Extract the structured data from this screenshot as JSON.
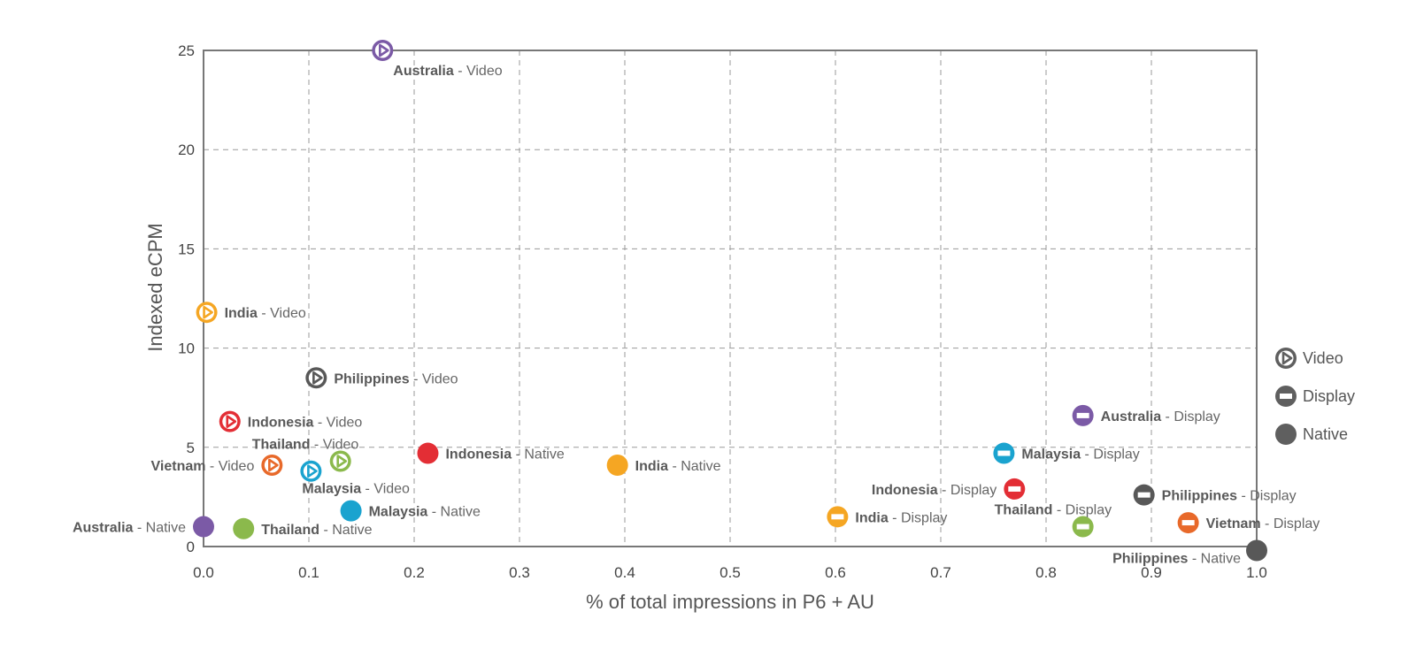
{
  "chart_data": {
    "type": "scatter",
    "title": "",
    "xlabel": "% of total impressions in P6 + AU",
    "ylabel": "Indexed eCPM",
    "xlim": [
      0,
      1.0
    ],
    "ylim": [
      0,
      25
    ],
    "x_ticks": [
      "0.0",
      "0.1",
      "0.2",
      "0.3",
      "0.4",
      "0.5",
      "0.6",
      "0.7",
      "0.8",
      "0.9",
      "1.0"
    ],
    "y_ticks": [
      "0",
      "5",
      "10",
      "15",
      "20",
      "25"
    ],
    "grid": "dashed",
    "legend_position": "right",
    "legend": [
      {
        "label": "Video",
        "marker": "video"
      },
      {
        "label": "Display",
        "marker": "display"
      },
      {
        "label": "Native",
        "marker": "native"
      }
    ],
    "marker_types": {
      "video": "circle-play-icon",
      "display": "circle-minus-icon",
      "native": "filled-circle-icon"
    },
    "countries": {
      "Australia": "#7b5aa6",
      "India": "#f5a623",
      "Philippines": "#585858",
      "Indonesia": "#e32e35",
      "Vietnam": "#e8692a",
      "Thailand": "#8bb94c",
      "Malaysia": "#1aa3cf"
    },
    "legend_color": "#5f5f5f",
    "points": [
      {
        "country": "Australia",
        "format": "Video",
        "type": "video",
        "x": 0.17,
        "y": 25.0,
        "label_pos": "below-right"
      },
      {
        "country": "India",
        "format": "Video",
        "type": "video",
        "x": 0.003,
        "y": 11.8,
        "label_pos": "right"
      },
      {
        "country": "Philippines",
        "format": "Video",
        "type": "video",
        "x": 0.107,
        "y": 8.5,
        "label_pos": "right"
      },
      {
        "country": "Indonesia",
        "format": "Video",
        "type": "video",
        "x": 0.025,
        "y": 6.3,
        "label_pos": "right"
      },
      {
        "country": "Thailand",
        "format": "Video",
        "type": "video",
        "x": 0.13,
        "y": 4.3,
        "label_pos": "above-left"
      },
      {
        "country": "Vietnam",
        "format": "Video",
        "type": "video",
        "x": 0.065,
        "y": 4.1,
        "label_pos": "left"
      },
      {
        "country": "Malaysia",
        "format": "Video",
        "type": "video",
        "x": 0.102,
        "y": 3.8,
        "label_pos": "below"
      },
      {
        "country": "Australia",
        "format": "Native",
        "type": "native",
        "x": 0.0,
        "y": 1.0,
        "label_pos": "left"
      },
      {
        "country": "Thailand",
        "format": "Native",
        "type": "native",
        "x": 0.038,
        "y": 0.9,
        "label_pos": "right"
      },
      {
        "country": "Malaysia",
        "format": "Native",
        "type": "native",
        "x": 0.14,
        "y": 1.8,
        "label_pos": "right"
      },
      {
        "country": "Indonesia",
        "format": "Native",
        "type": "native",
        "x": 0.213,
        "y": 4.7,
        "label_pos": "right"
      },
      {
        "country": "India",
        "format": "Native",
        "type": "native",
        "x": 0.393,
        "y": 4.1,
        "label_pos": "right"
      },
      {
        "country": "Philippines",
        "format": "Native",
        "type": "native",
        "x": 1.0,
        "y": -0.2,
        "label_pos": "left-below"
      },
      {
        "country": "Australia",
        "format": "Display",
        "type": "display",
        "x": 0.835,
        "y": 6.6,
        "label_pos": "right"
      },
      {
        "country": "Malaysia",
        "format": "Display",
        "type": "display",
        "x": 0.76,
        "y": 4.7,
        "label_pos": "right"
      },
      {
        "country": "Indonesia",
        "format": "Display",
        "type": "display",
        "x": 0.77,
        "y": 2.9,
        "label_pos": "left"
      },
      {
        "country": "Philippines",
        "format": "Display",
        "type": "display",
        "x": 0.893,
        "y": 2.6,
        "label_pos": "right"
      },
      {
        "country": "India",
        "format": "Display",
        "type": "display",
        "x": 0.602,
        "y": 1.5,
        "label_pos": "right"
      },
      {
        "country": "Thailand",
        "format": "Display",
        "type": "display",
        "x": 0.835,
        "y": 1.0,
        "label_pos": "above-left"
      },
      {
        "country": "Vietnam",
        "format": "Display",
        "type": "display",
        "x": 0.935,
        "y": 1.2,
        "label_pos": "right"
      }
    ]
  }
}
